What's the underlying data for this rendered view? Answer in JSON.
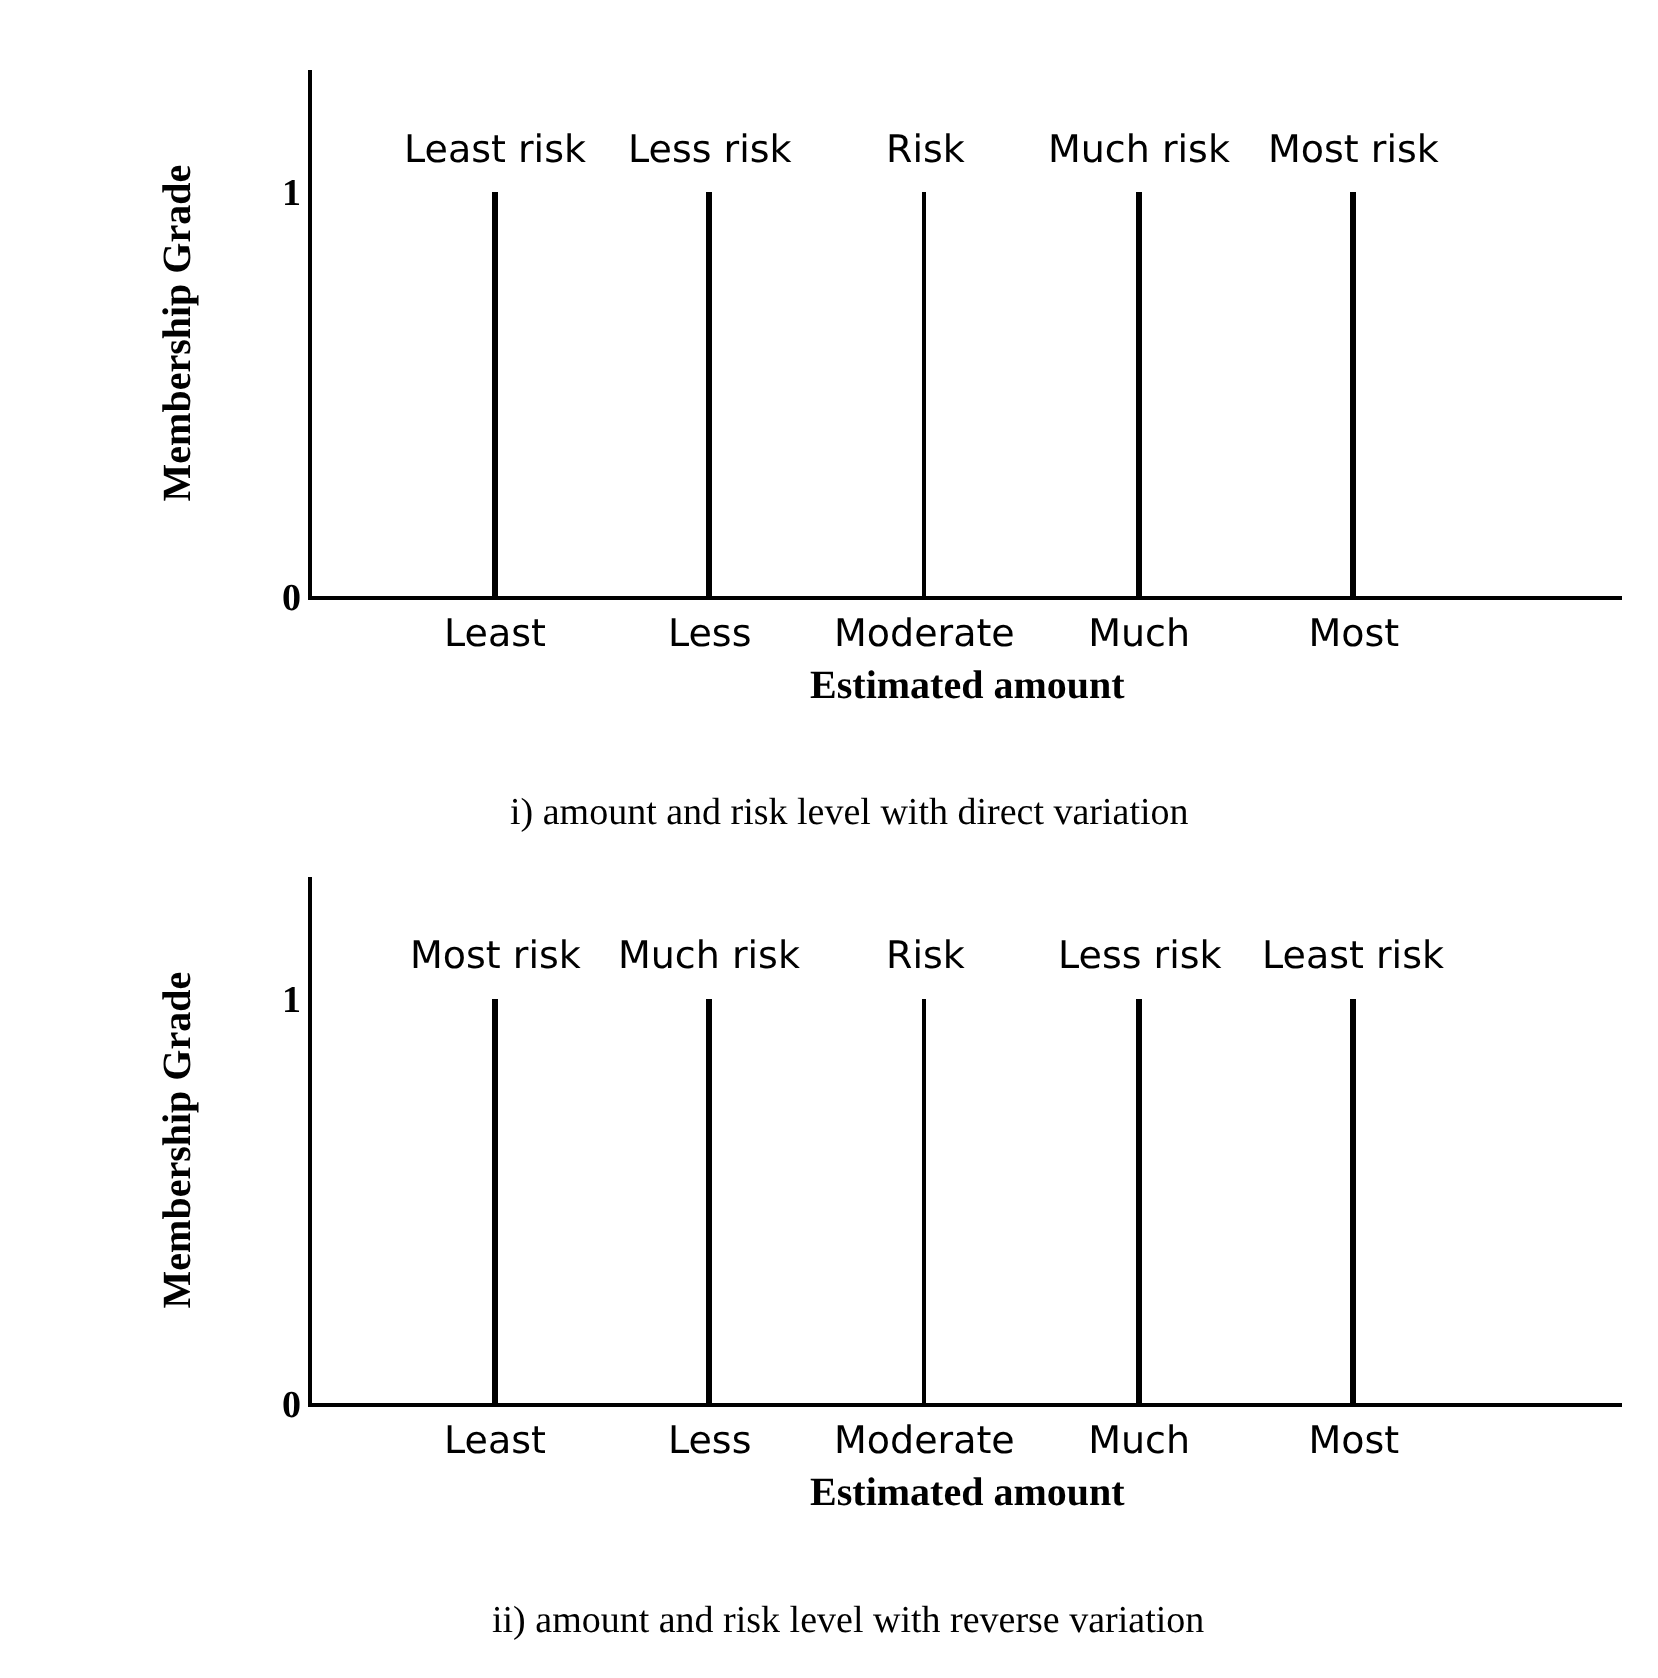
{
  "chart_data": [
    {
      "type": "bar",
      "categories": [
        "Least",
        "Less",
        "Moderate",
        "Much",
        "Most"
      ],
      "values": [
        1,
        1,
        1,
        1,
        1
      ],
      "color": "#000000",
      "ylim": [
        0,
        1.3
      ],
      "yticks": [
        0,
        1
      ],
      "xlabel": "Estimated amount",
      "ylabel": "Membership Grade",
      "annotations": [
        {
          "text": "Least risk",
          "x": "Least",
          "y": 1
        },
        {
          "text": "Less risk",
          "x": "Less",
          "y": 1
        },
        {
          "text": "Risk",
          "x": "Moderate",
          "y": 1
        },
        {
          "text": "Much risk",
          "x": "Much",
          "y": 1
        },
        {
          "text": "Most risk",
          "x": "Most",
          "y": 1
        },
        "i) amount and risk level with direct variation"
      ]
    },
    {
      "type": "bar",
      "categories": [
        "Least",
        "Less",
        "Moderate",
        "Much",
        "Most"
      ],
      "values": [
        1,
        1,
        1,
        1,
        1
      ],
      "color": "#000000",
      "ylim": [
        0,
        1.3
      ],
      "yticks": [
        0,
        1
      ],
      "xlabel": "Estimated amount",
      "ylabel": "Membership Grade",
      "annotations": [
        {
          "text": "Most risk",
          "x": "Least",
          "y": 1
        },
        {
          "text": "Much risk",
          "x": "Less",
          "y": 1
        },
        {
          "text": "Risk",
          "x": "Moderate",
          "y": 1
        },
        {
          "text": "Less risk",
          "x": "Much",
          "y": 1
        },
        {
          "text": "Least risk",
          "x": "Most",
          "y": 1
        },
        "ii) amount and risk level with reverse variation"
      ]
    }
  ]
}
